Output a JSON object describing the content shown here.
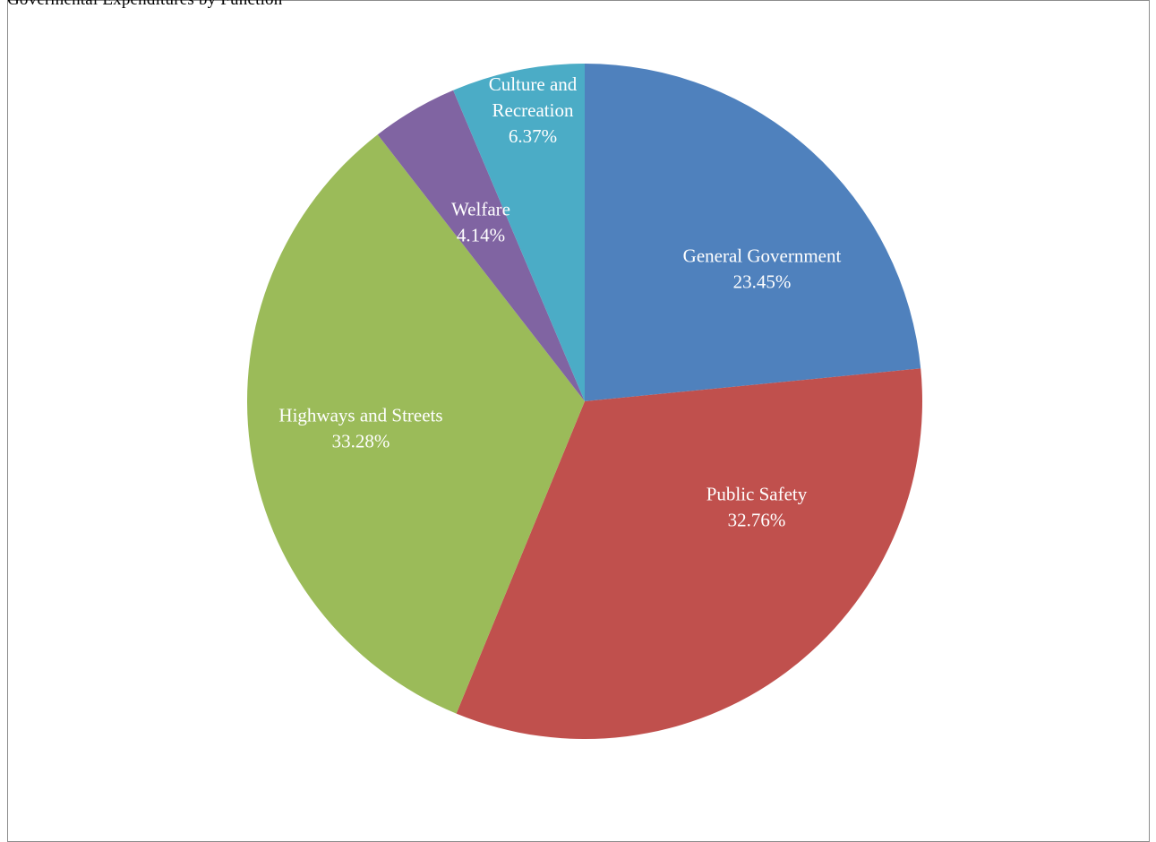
{
  "header": {
    "cut_text": "Govermental Expenditures by Function"
  },
  "chart_data": {
    "type": "pie",
    "title": "",
    "slices": [
      {
        "name": "General Government",
        "value": 23.45,
        "label_lines": [
          "General Government"
        ],
        "percent_label": "23.45%",
        "color": "#4f81bd"
      },
      {
        "name": "Public Safety",
        "value": 32.76,
        "label_lines": [
          "Public Safety"
        ],
        "percent_label": "32.76%",
        "color": "#c0504d"
      },
      {
        "name": "Highways and Streets",
        "value": 33.28,
        "label_lines": [
          "Highways and Streets"
        ],
        "percent_label": "33.28%",
        "color": "#9bbb59"
      },
      {
        "name": "Welfare",
        "value": 4.14,
        "label_lines": [
          "Welfare"
        ],
        "percent_label": "4.14%",
        "color": "#8064a2"
      },
      {
        "name": "Culture and Recreation",
        "value": 6.37,
        "label_lines": [
          "Culture and",
          "Recreation"
        ],
        "percent_label": "6.37%",
        "color": "#4bacc6"
      }
    ],
    "start_angle_deg": 0,
    "direction": "clockwise",
    "legend": "none",
    "data_labels": "inside"
  }
}
